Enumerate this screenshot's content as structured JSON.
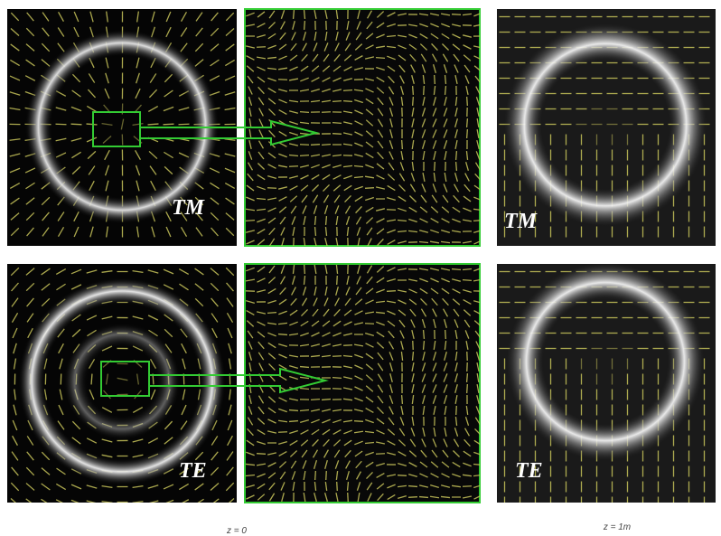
{
  "rows": [
    {
      "left_label": "TM",
      "right_label": "TM"
    },
    {
      "left_label": "TE",
      "right_label": "TE"
    }
  ],
  "captions": [
    "z = 0",
    "z = 1m"
  ]
}
